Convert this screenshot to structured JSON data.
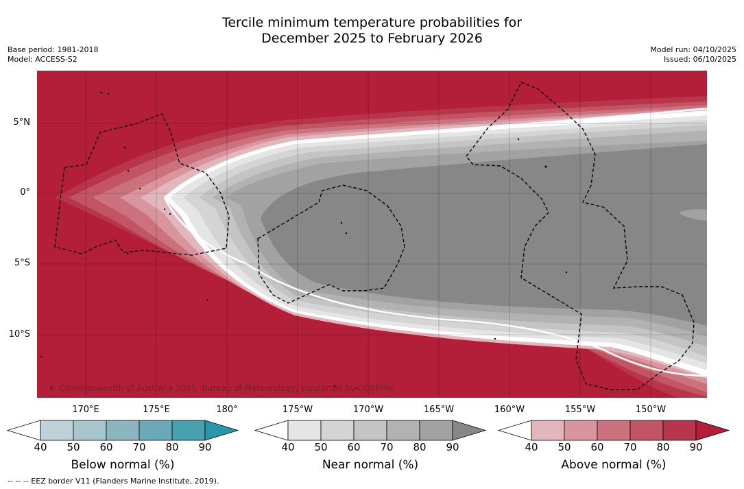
{
  "title": {
    "line1": "Tercile minimum temperature probabilities for",
    "line2": "December 2025 to February 2026"
  },
  "meta_left": {
    "base_period": "Base period: 1981-2018",
    "model": "Model: ACCESS-S2"
  },
  "meta_right": {
    "model_run": "Model run: 04/10/2025",
    "issued": "Issued: 06/10/2025"
  },
  "map": {
    "lat_labels": [
      "5°N",
      "0°",
      "5°S",
      "10°S"
    ],
    "lon_labels": [
      "170°E",
      "175°E",
      "180°",
      "175°W",
      "170°W",
      "165°W",
      "160°W",
      "155°W",
      "150°W"
    ],
    "copyright": "© Commonwealth of Australia 2025, Bureau of Meteorology, supported by COSPPac",
    "colors": {
      "above_90": "#b31e39",
      "near_90": "#878787",
      "border": "#000000"
    }
  },
  "colorbars": {
    "below": {
      "title": "Below normal (%)",
      "ticks": [
        "40",
        "50",
        "60",
        "70",
        "80",
        "90"
      ],
      "colors": [
        "#ffffff",
        "#bdd3d9",
        "#a7c7cd",
        "#8bb5bf",
        "#6aaab8",
        "#47a0b0",
        "#2b96aa"
      ]
    },
    "near": {
      "title": "Near normal (%)",
      "ticks": [
        "40",
        "50",
        "60",
        "70",
        "80",
        "90"
      ],
      "colors": [
        "#ffffff",
        "#e5e5e5",
        "#d4d4d4",
        "#c4c4c4",
        "#b2b2b2",
        "#a2a2a2",
        "#878787"
      ]
    },
    "above": {
      "title": "Above normal (%)",
      "ticks": [
        "40",
        "50",
        "60",
        "70",
        "80",
        "90"
      ],
      "colors": [
        "#ffffff",
        "#e3b6bd",
        "#d8959e",
        "#cc727f",
        "#c25563",
        "#b8364b",
        "#b31e39"
      ]
    }
  },
  "footer": "-- -- -- EEZ border V11 (Flanders Marine Institute, 2019)."
}
